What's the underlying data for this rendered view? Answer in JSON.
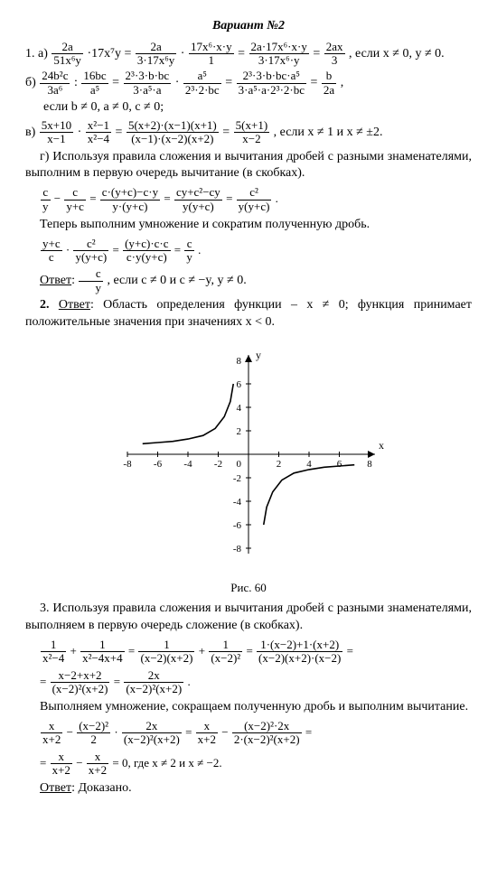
{
  "title": "Вариант №2",
  "p1a_lead": "1. а)",
  "p1a_tail": ", если x ≠ 0, y ≠ 0.",
  "p1b_lead": "б)",
  "p1b_tail2": "если b ≠ 0, a ≠ 0, c ≠ 0;",
  "p1v_lead": "в)",
  "p1v_tail": ", если x ≠ 1 и x ≠ ±2.",
  "p1g": "г) Используя правила сложения и вычитания дробей с разными знаменателями, выполним в первую очередь вычитание (в скобках).",
  "p1g2": "Теперь выполним умножение и сократим полученную дробь.",
  "ans1_label": "Ответ",
  "ans1_tail": ", если c ≠ 0 и c ≠ −y, y ≠ 0.",
  "p2_lead": "2.",
  "p2_ans": "Ответ",
  "p2_body": ": Область определения функции – x ≠ 0; функция принимает положительные значения при значениях x < 0.",
  "fig_caption": "Рис. 60",
  "p3": "3. Используя правила сложения и вычитания дробей с разными знаменателями, выполняем в первую очередь сложение (в скобках).",
  "p3b": "Выполняем умножение, сокращаем полученную дробь и выполним вычитание.",
  "p3_end": "= 0, где x ≠ 2 и x ≠ −2.",
  "ans3": "Ответ",
  "ans3_body": ": Доказано.",
  "f": {
    "a1n": "2a",
    "a1d": "51x⁶y",
    "a1m": "·17x⁷y =",
    "a2n": "2a",
    "a2d": "3·17x⁶y",
    "dot": "·",
    "a3n": "17x⁶·x·y",
    "a3d": "1",
    "eqs": " = ",
    "a4n": "2a·17x⁶·x·y",
    "a4d": "3·17x⁶·y",
    "a5n": "2ax",
    "a5d": "3",
    "b1n": "24b²c",
    "b1d": "3a⁶",
    "colon": " : ",
    "b2n": "16bc",
    "b2d": "a⁵",
    "b3n": "2³·3·b·bc",
    "b3d": "3·a⁵·a",
    "b4n": "a⁵",
    "b4d": "2³·2·bc",
    "b5n": "2³·3·b·bc·a⁵",
    "b5d": "3·a⁵·a·2³·2·bc",
    "b6n": "b",
    "b6d": "2a",
    "comma": ",",
    "v1n": "5x+10",
    "v1d": "x−1",
    "v2n": "x²−1",
    "v2d": "x²−4",
    "v3n": "5(x+2)·(x−1)(x+1)",
    "v3d": "(x−1)·(x−2)(x+2)",
    "v4n": "5(x+1)",
    "v4d": "x−2",
    "g1n": "c",
    "g1d": "y",
    "minus": " − ",
    "g2n": "c",
    "g2d": "y+c",
    "g3n": "c·(y+c)−c·y",
    "g3d": "y·(y+c)",
    "g4n": "cy+c²−cy",
    "g4d": "y(y+c)",
    "g5n": "c²",
    "g5d": "y(y+c)",
    "period": ".",
    "h1n": "y+c",
    "h1d": "c",
    "h2n": "c²",
    "h2d": "y(y+c)",
    "h3n": "(y+c)·c·c",
    "h3d": "c·y(y+c)",
    "h4n": "c",
    "h4d": "y",
    "ansn": "c",
    "ansd": "y",
    "t1n": "1",
    "t1d": "x²−4",
    "plus": " + ",
    "t2n": "1",
    "t2d": "x²−4x+4",
    "t3n": "1",
    "t3d": "(x−2)(x+2)",
    "t4n": "1",
    "t4d": "(x−2)²",
    "t5n": "1·(x−2)+1·(x+2)",
    "t5d": "(x−2)(x+2)·(x−2)",
    "u1": "= ",
    "u1n": "x−2+x+2",
    "u1d": "(x−2)²(x+2)",
    "u2n": "2x",
    "u2d": "(x−2)²(x+2)",
    "w1n": "x",
    "w1d": "x+2",
    "w2n": "(x−2)²",
    "w2d": "2",
    "w3n": "2x",
    "w3d": "(x−2)²(x+2)",
    "w4n": "x",
    "w4d": "x+2",
    "w5n": "(x−2)²·2x",
    "w5d": "2·(x−2)²(x+2)",
    "z1": "= ",
    "z1n": "x",
    "z1d": "x+2",
    "z2n": "x",
    "z2d": "x+2"
  },
  "chart": {
    "xlabel": "x",
    "ylabel": "y",
    "xmin": -8,
    "xmax": 8,
    "ymin": -8,
    "ymax": 8,
    "xticks": [
      -8,
      -6,
      -4,
      -2,
      0,
      2,
      4,
      6,
      8
    ],
    "yticks": [
      -8,
      -6,
      -4,
      -2,
      2,
      4,
      6,
      8
    ],
    "bg": "#ffffff",
    "axis_color": "#000000",
    "curve_color": "#000000",
    "stroke_width": 1.6,
    "curve1": [
      [
        -7,
        0.9
      ],
      [
        -6,
        1.0
      ],
      [
        -5,
        1.1
      ],
      [
        -4,
        1.3
      ],
      [
        -3,
        1.6
      ],
      [
        -2.2,
        2.2
      ],
      [
        -1.6,
        3.2
      ],
      [
        -1.2,
        4.5
      ],
      [
        -1.0,
        6.0
      ]
    ],
    "curve2": [
      [
        1.0,
        -6.0
      ],
      [
        1.2,
        -4.5
      ],
      [
        1.6,
        -3.2
      ],
      [
        2.2,
        -2.2
      ],
      [
        3,
        -1.6
      ],
      [
        4,
        -1.3
      ],
      [
        5,
        -1.1
      ],
      [
        6,
        -1.0
      ],
      [
        7,
        -0.9
      ]
    ]
  }
}
